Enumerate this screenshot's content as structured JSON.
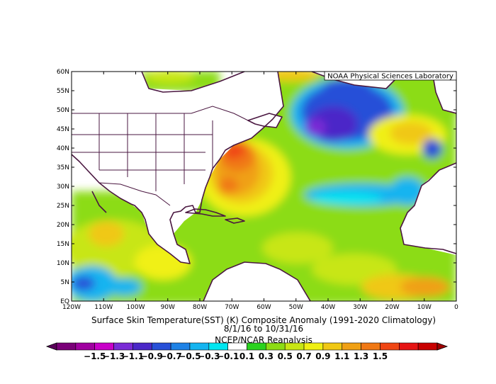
{
  "credit": "NOAA Physical Sciences Laboratory",
  "caption": {
    "line1": "Surface Skin Temperature(SST) (K) Composite Anomaly (1991-2020 Climatology)",
    "line2": "8/1/16  to 10/31/16",
    "line3": "NCEP/NCAR Reanalysis"
  },
  "lat_labels": [
    "60N",
    "55N",
    "50N",
    "45N",
    "40N",
    "35N",
    "30N",
    "25N",
    "20N",
    "15N",
    "10N",
    "5N",
    "EQ"
  ],
  "lon_labels": [
    "120W",
    "110W",
    "100W",
    "90W",
    "80W",
    "70W",
    "60W",
    "50W",
    "40W",
    "30W",
    "20W",
    "10W",
    "0"
  ],
  "colorbar": {
    "labels": [
      "-1.5",
      "-1.3",
      "-1.1",
      "-0.9",
      "-0.7",
      "-0.5",
      "-0.3",
      "-0.1",
      "0.1",
      "0.3",
      "0.5",
      "0.7",
      "0.9",
      "1.1",
      "1.3",
      "1.5"
    ],
    "colors": [
      "#7a0078",
      "#a000a0",
      "#c800c8",
      "#7a2bd6",
      "#4b28c8",
      "#2850d8",
      "#1e82e6",
      "#14b4f0",
      "#00e6f0",
      "#ffffff",
      "#2ad21e",
      "#8cdc14",
      "#c8e614",
      "#f0f014",
      "#f0c814",
      "#f0a014",
      "#f07814",
      "#f04614",
      "#e61414",
      "#c80000"
    ],
    "under_color": "#5a005a",
    "over_color": "#a00000"
  }
}
